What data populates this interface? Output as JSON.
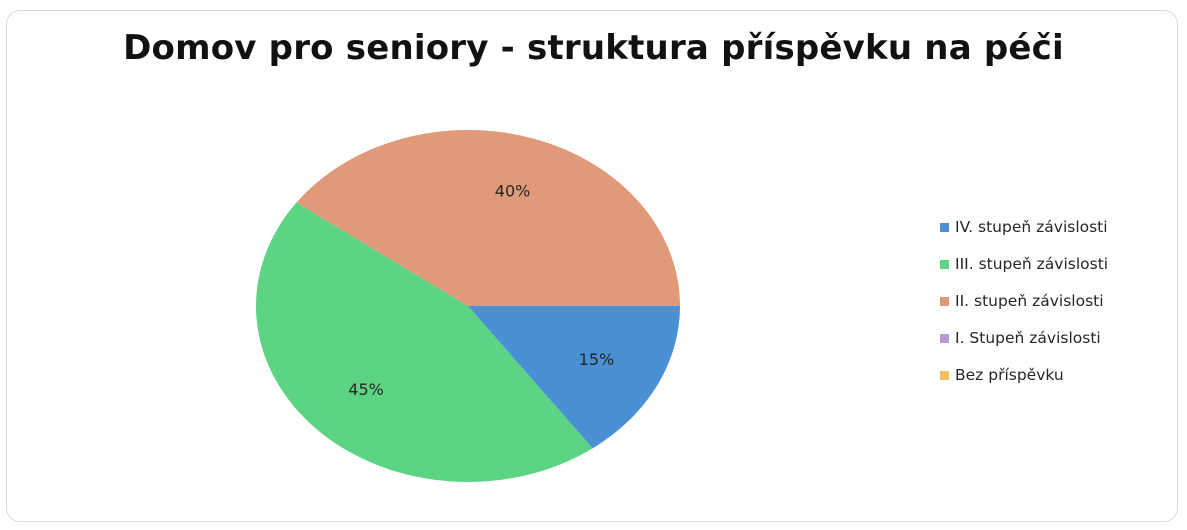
{
  "chart_data": {
    "type": "pie",
    "title": "Domov pro seniory - struktura příspěvku na péči",
    "categories": [
      "IV. stupeň závislosti",
      "III. stupeň závislosti",
      "II. stupeň závislosti",
      "I. Stupeň závislosti",
      "Bez příspěvku"
    ],
    "values": [
      15,
      45,
      40,
      0,
      0
    ],
    "data_labels": [
      "15%",
      "45%",
      "40%",
      "",
      ""
    ],
    "colors": [
      "#4a90d4",
      "#5cd483",
      "#e09a7a",
      "#b99ad9",
      "#f0c060"
    ],
    "legend_position": "right",
    "start_angle_deg": 90,
    "direction": "clockwise"
  }
}
